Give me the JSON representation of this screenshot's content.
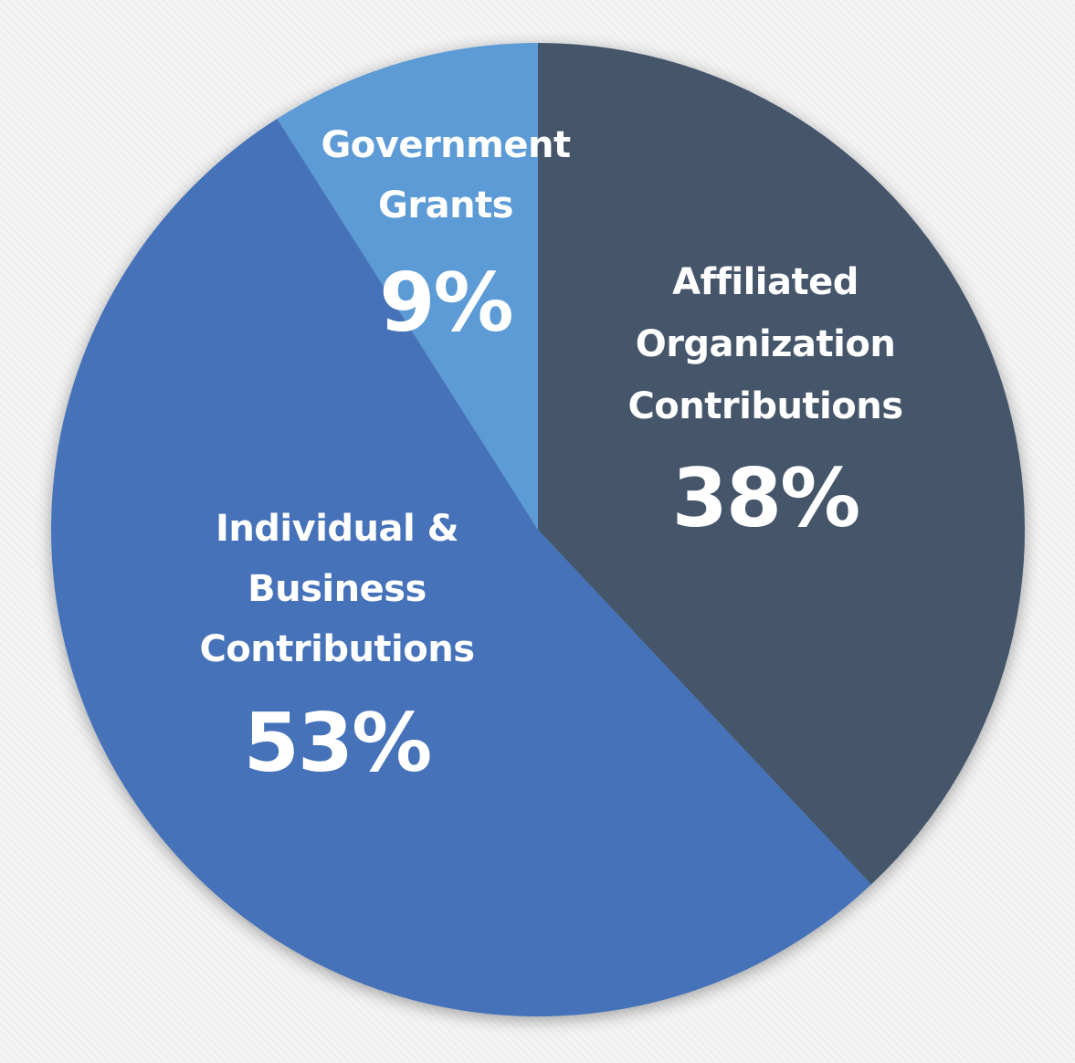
{
  "chart_data": {
    "type": "pie",
    "start_angle_deg": 0,
    "direction": "clockwise",
    "slices": [
      {
        "label_lines": [
          "Affiliated",
          "Organization",
          "Contributions"
        ],
        "value": 38,
        "value_label": "38%",
        "color": "#44546a"
      },
      {
        "label_lines": [
          "Individual &",
          "Business",
          "Contributions"
        ],
        "value": 53,
        "value_label": "53%",
        "color": "#4472b8"
      },
      {
        "label_lines": [
          "Government",
          "Grants"
        ],
        "value": 9,
        "value_label": "9%",
        "color": "#5b9bd5"
      }
    ]
  }
}
